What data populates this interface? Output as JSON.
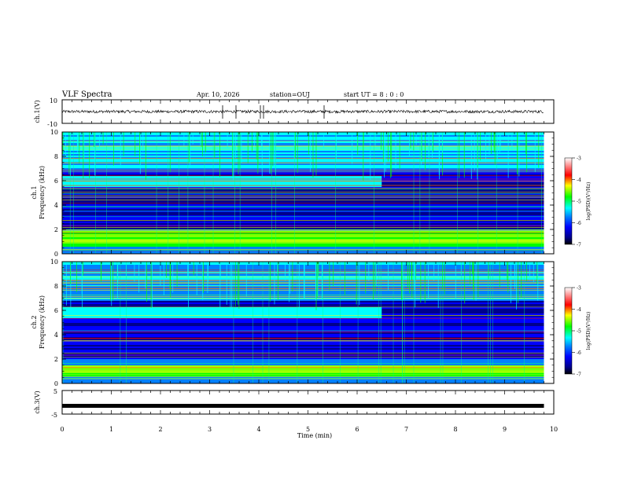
{
  "header": {
    "title": "VLF Spectra",
    "date": "Apr. 10, 2026",
    "station": "station=OUJ",
    "start": "start UT = 8 : 0 : 0"
  },
  "chart_data": {
    "type": "heatmap",
    "xlabel": "Time (min)",
    "xlim": [
      0,
      10
    ],
    "xticks": [
      0,
      1,
      2,
      3,
      4,
      5,
      6,
      7,
      8,
      9,
      10
    ],
    "data_end_min": 9.8,
    "panels": [
      {
        "id": "ch1",
        "type": "line",
        "ylabel": "ch.1(V)",
        "ylim": [
          -10,
          10
        ],
        "ytick_labels": [
          "10",
          "-10"
        ],
        "signal": "continuous noise band, roughly -1 to +1 V"
      },
      {
        "id": "spec1",
        "type": "heatmap",
        "ylabel_top": "ch.1",
        "ylabel": "Frequency (kHz)",
        "ylim": [
          0,
          10
        ],
        "yticks": [
          0,
          2,
          4,
          6,
          8,
          10
        ],
        "bands_khz": [
          {
            "from": 0.6,
            "to": 1.9,
            "level": "high"
          },
          {
            "from": 5.5,
            "to": 6.4,
            "level": "medium",
            "until_min": 6.5
          }
        ],
        "colorbar": {
          "label": "log(PSD)(V²/Hz)",
          "ticks": [
            "-3",
            "-4",
            "-5",
            "-6",
            "-7"
          ],
          "range": [
            -7,
            -3
          ]
        }
      },
      {
        "id": "spec2",
        "type": "heatmap",
        "ylabel_top": "ch.2",
        "ylabel": "Frequency (kHz)",
        "ylim": [
          0,
          10
        ],
        "yticks": [
          0,
          2,
          4,
          6,
          8,
          10
        ],
        "bands_khz": [
          {
            "from": 0.6,
            "to": 1.6,
            "level": "high"
          },
          {
            "from": 5.4,
            "to": 6.3,
            "level": "medium",
            "until_min": 6.5
          }
        ],
        "colorbar": {
          "label": "log(PSD)(V²/Hz)",
          "ticks": [
            "-3",
            "-4",
            "-5",
            "-6",
            "-7"
          ],
          "range": [
            -7,
            -3
          ]
        }
      },
      {
        "id": "ch3",
        "type": "line",
        "ylabel": "ch.3(V)",
        "ylim": [
          -5,
          5
        ],
        "ytick_labels": [
          "5",
          "-5"
        ],
        "signal": "flat line near -1.5 V"
      }
    ],
    "colormap": [
      "#000000",
      "#00008b",
      "#0000ff",
      "#0080ff",
      "#00ffff",
      "#00ff80",
      "#00ff00",
      "#80ff00",
      "#ffff00",
      "#ff8000",
      "#ff0000",
      "#ffffff"
    ]
  }
}
